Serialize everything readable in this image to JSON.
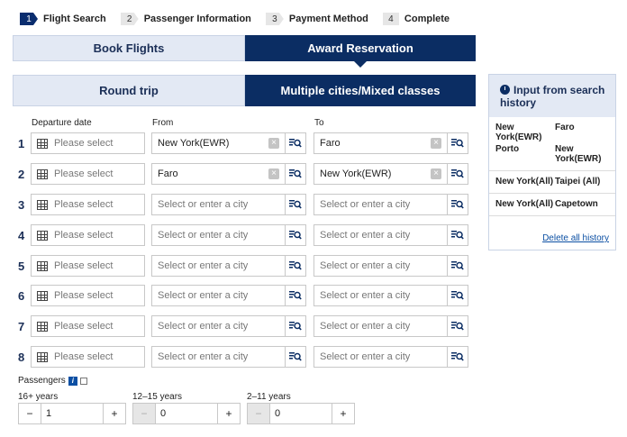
{
  "steps": [
    {
      "num": "1",
      "label": "Flight Search"
    },
    {
      "num": "2",
      "label": "Passenger Information"
    },
    {
      "num": "3",
      "label": "Payment Method"
    },
    {
      "num": "4",
      "label": "Complete"
    }
  ],
  "tabs": {
    "book": "Book Flights",
    "award": "Award Reservation"
  },
  "subtabs": {
    "round": "Round trip",
    "multi": "Multiple cities/Mixed classes"
  },
  "columns": {
    "date": "Departure date",
    "from": "From",
    "to": "To"
  },
  "date_placeholder": "Please select",
  "city_placeholder": "Select or enter a city",
  "rows": [
    {
      "num": "1",
      "from": "New York(EWR)",
      "to": "Faro"
    },
    {
      "num": "2",
      "from": "Faro",
      "to": "New York(EWR)"
    },
    {
      "num": "3",
      "from": "",
      "to": ""
    },
    {
      "num": "4",
      "from": "",
      "to": ""
    },
    {
      "num": "5",
      "from": "",
      "to": ""
    },
    {
      "num": "6",
      "from": "",
      "to": ""
    },
    {
      "num": "7",
      "from": "",
      "to": ""
    },
    {
      "num": "8",
      "from": "",
      "to": ""
    }
  ],
  "passengers": {
    "label": "Passengers",
    "groups": [
      {
        "age": "16+ years",
        "value": "1"
      },
      {
        "age": "12–15 years",
        "value": "0"
      },
      {
        "age": "2–11 years",
        "value": "0"
      }
    ]
  },
  "history": {
    "title": "Input from search history",
    "items": [
      {
        "pairs": [
          [
            "New York(EWR)",
            "Faro"
          ],
          [
            "Porto",
            "New York(EWR)"
          ]
        ]
      },
      {
        "pairs": [
          [
            "New York(All)",
            "Taipei (All)"
          ]
        ]
      },
      {
        "pairs": [
          [
            "New York(All)",
            "Capetown"
          ]
        ]
      }
    ],
    "delete": "Delete all history"
  },
  "colors": {
    "navy": "#0b2d63",
    "light": "#e3e9f4"
  }
}
